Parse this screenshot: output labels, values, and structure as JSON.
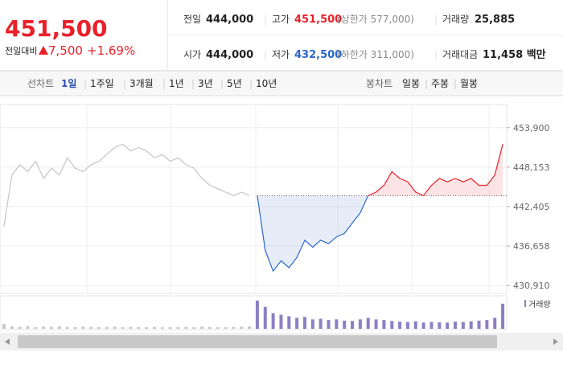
{
  "header": {
    "price": "451,500",
    "change_label": "전일대비",
    "change": "7,500",
    "change_pct": "+1.69%"
  },
  "stats": [
    [
      {
        "label": "전일",
        "value": "444,000"
      },
      {
        "label": "고가",
        "value": "451,500",
        "note": "(상한가 577,000)"
      },
      {
        "label": "거래량",
        "value": "25,885"
      }
    ],
    [
      {
        "label": "시가",
        "value": "444,000"
      },
      {
        "label": "저가",
        "value": "432,500",
        "note": "(하한가 311,000)"
      },
      {
        "label": "거래대금",
        "value": "11,458 백만"
      }
    ]
  ],
  "tabs": {
    "line_label": "선차트",
    "line": [
      "1일",
      "1주일",
      "3개월",
      "1년",
      "3년",
      "5년",
      "10년"
    ],
    "candle_label": "봉차트",
    "candle": [
      "일봉",
      "주봉",
      "월봉"
    ]
  },
  "chart_data": {
    "type": "line",
    "ylim": [
      429750,
      457270
    ],
    "yticks": [
      {
        "value": 453900,
        "label": "453,900"
      },
      {
        "value": 448153,
        "label": "448,153"
      },
      {
        "value": 442405,
        "label": "442,405"
      },
      {
        "value": 436658,
        "label": "436,658"
      },
      {
        "value": 430910,
        "label": "430,910"
      }
    ],
    "baseline": 444000,
    "up_color": "#e8212a",
    "down_color": "#2b66c9",
    "series": [
      {
        "color": "#c4c4c4",
        "values": [
          439500,
          447000,
          448500,
          447500,
          449000,
          446500,
          448000,
          447000,
          449500,
          448000,
          447500,
          448500,
          449000,
          450000,
          451000,
          451500,
          450500,
          451000,
          450500,
          449500,
          450000,
          449000,
          449500,
          448500,
          448000,
          446500,
          445500,
          445000,
          444500,
          444000,
          444500,
          444000,
          null,
          null,
          null,
          null,
          null,
          null,
          null,
          null,
          null,
          null,
          null,
          null,
          null,
          null,
          null,
          null,
          null,
          null,
          null,
          null,
          null,
          null,
          null,
          null,
          null,
          null,
          null,
          null,
          null,
          null,
          null,
          null
        ]
      },
      {
        "color": "#e8212a",
        "values": [
          null,
          null,
          null,
          null,
          null,
          null,
          null,
          null,
          null,
          null,
          null,
          null,
          null,
          null,
          null,
          null,
          null,
          null,
          null,
          null,
          null,
          null,
          null,
          null,
          null,
          null,
          null,
          null,
          null,
          null,
          null,
          null,
          444000,
          436000,
          433000,
          434500,
          433500,
          435000,
          437500,
          436500,
          437500,
          437000,
          438000,
          438500,
          440000,
          441500,
          444000,
          444500,
          445500,
          447500,
          446500,
          446000,
          444500,
          444000,
          445500,
          446500,
          446000,
          446500,
          446000,
          446500,
          445500,
          445500,
          447000,
          451500
        ]
      }
    ],
    "volume": {
      "label": "거래량",
      "ylim": [
        0,
        1000
      ],
      "prev_color": "#c8c8c8",
      "color": "#8c7fc4",
      "values": [
        150,
        80,
        60,
        90,
        50,
        70,
        60,
        80,
        60,
        50,
        70,
        60,
        55,
        60,
        70,
        50,
        60,
        55,
        50,
        60,
        45,
        50,
        55,
        60,
        50,
        70,
        60,
        55,
        50,
        60,
        70,
        80,
        900,
        700,
        500,
        450,
        400,
        350,
        380,
        300,
        320,
        280,
        300,
        260,
        250,
        300,
        350,
        300,
        280,
        250,
        230,
        220,
        240,
        200,
        220,
        210,
        200,
        230,
        220,
        240,
        260,
        280,
        350,
        800
      ]
    }
  }
}
